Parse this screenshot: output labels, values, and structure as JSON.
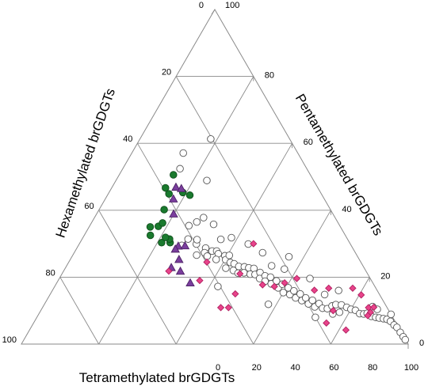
{
  "chart_data": {
    "type": "scatter",
    "subtype": "ternary",
    "axes": {
      "bottom": {
        "label": "Tetramethylated brGDGTs",
        "ticks": [
          "0",
          "20",
          "40",
          "60",
          "80",
          "100"
        ]
      },
      "left": {
        "label": "Hexamethylated brGDGTs",
        "ticks": [
          "0",
          "20",
          "40",
          "60",
          "80",
          "100"
        ]
      },
      "right": {
        "label": "Pentamethylated brGDGTs",
        "ticks": [
          "100",
          "80",
          "60",
          "40",
          "20",
          "0"
        ]
      }
    },
    "range": [
      0,
      100
    ],
    "grid": true,
    "grid_step": 20,
    "series": [
      {
        "marker": "circle",
        "color": "#ffffff",
        "stroke": "#555555",
        "points": [
          {
            "tetra": 27.4,
            "hexa": 41.2
          },
          {
            "tetra": 26.7,
            "hexa": 43.8
          },
          {
            "tetra": 30.3,
            "hexa": 39.8
          },
          {
            "tetra": 29.8,
            "hexa": 39.0
          },
          {
            "tetra": 32.0,
            "hexa": 41.4
          },
          {
            "tetra": 33.3,
            "hexa": 38.0
          },
          {
            "tetra": 33.7,
            "hexa": 39.0
          },
          {
            "tetra": 35.4,
            "hexa": 36.8
          },
          {
            "tetra": 34.9,
            "hexa": 38.8
          },
          {
            "tetra": 36.6,
            "hexa": 35.6
          },
          {
            "tetra": 37.4,
            "hexa": 35.6
          },
          {
            "tetra": 37.7,
            "hexa": 37.0
          },
          {
            "tetra": 39.4,
            "hexa": 34.2
          },
          {
            "tetra": 40.2,
            "hexa": 34.6
          },
          {
            "tetra": 40.5,
            "hexa": 33.0
          },
          {
            "tetra": 41.8,
            "hexa": 33.8
          },
          {
            "tetra": 41.5,
            "hexa": 35.8
          },
          {
            "tetra": 43.0,
            "hexa": 33.0
          },
          {
            "tetra": 43.8,
            "hexa": 34.2
          },
          {
            "tetra": 44.6,
            "hexa": 32.2
          },
          {
            "tetra": 45.4,
            "hexa": 33.4
          },
          {
            "tetra": 46.1,
            "hexa": 30.8
          },
          {
            "tetra": 46.9,
            "hexa": 31.8
          },
          {
            "tetra": 47.4,
            "hexa": 29.8
          },
          {
            "tetra": 48.7,
            "hexa": 30.4
          },
          {
            "tetra": 48.8,
            "hexa": 28.6
          },
          {
            "tetra": 50.0,
            "hexa": 29.2
          },
          {
            "tetra": 51.0,
            "hexa": 27.6
          },
          {
            "tetra": 51.8,
            "hexa": 28.6
          },
          {
            "tetra": 52.8,
            "hexa": 26.8
          },
          {
            "tetra": 53.6,
            "hexa": 27.6
          },
          {
            "tetra": 54.4,
            "hexa": 25.6
          },
          {
            "tetra": 55.6,
            "hexa": 26.4
          },
          {
            "tetra": 56.5,
            "hexa": 24.6
          },
          {
            "tetra": 58.0,
            "hexa": 25.2
          },
          {
            "tetra": 58.5,
            "hexa": 23.6
          },
          {
            "tetra": 60.0,
            "hexa": 24.6
          },
          {
            "tetra": 60.6,
            "hexa": 22.6
          },
          {
            "tetra": 62.0,
            "hexa": 23.2
          },
          {
            "tetra": 62.5,
            "hexa": 21.6
          },
          {
            "tetra": 64.0,
            "hexa": 22.2
          },
          {
            "tetra": 64.6,
            "hexa": 20.4
          },
          {
            "tetra": 66.0,
            "hexa": 21.0
          },
          {
            "tetra": 66.6,
            "hexa": 19.6
          },
          {
            "tetra": 68.2,
            "hexa": 19.8
          },
          {
            "tetra": 68.7,
            "hexa": 18.2
          },
          {
            "tetra": 70.3,
            "hexa": 18.6
          },
          {
            "tetra": 70.9,
            "hexa": 17.0
          },
          {
            "tetra": 72.5,
            "hexa": 16.8
          },
          {
            "tetra": 73.8,
            "hexa": 15.6
          },
          {
            "tetra": 74.6,
            "hexa": 14.0
          },
          {
            "tetra": 75.4,
            "hexa": 12.8
          },
          {
            "tetra": 76.0,
            "hexa": 15.0
          },
          {
            "tetra": 76.9,
            "hexa": 11.4
          },
          {
            "tetra": 77.5,
            "hexa": 13.0
          },
          {
            "tetra": 78.6,
            "hexa": 10.4
          },
          {
            "tetra": 80.0,
            "hexa": 9.6
          },
          {
            "tetra": 81.3,
            "hexa": 8.6
          },
          {
            "tetra": 82.9,
            "hexa": 8.0
          },
          {
            "tetra": 84.0,
            "hexa": 7.0
          },
          {
            "tetra": 84.8,
            "hexa": 6.0
          },
          {
            "tetra": 86.3,
            "hexa": 5.4
          },
          {
            "tetra": 87.6,
            "hexa": 4.4
          },
          {
            "tetra": 88.6,
            "hexa": 3.6
          },
          {
            "tetra": 89.8,
            "hexa": 2.6
          },
          {
            "tetra": 90.8,
            "hexa": 1.8
          },
          {
            "tetra": 92.0,
            "hexa": 1.2
          },
          {
            "tetra": 93.5,
            "hexa": 0.8
          },
          {
            "tetra": 94.6,
            "hexa": 0.4
          },
          {
            "tetra": 96.2,
            "hexa": 0.3
          },
          {
            "tetra": 97.6,
            "hexa": 0.2
          },
          {
            "tetra": 98.6,
            "hexa": 0.1
          },
          {
            "tetra": 91.1,
            "hexa": 0.0
          },
          {
            "tetra": 86.8,
            "hexa": 2.8
          },
          {
            "tetra": 85.2,
            "hexa": 3.6
          },
          {
            "tetra": 74.0,
            "hexa": 10.0
          },
          {
            "tetra": 71.0,
            "hexa": 14.2
          },
          {
            "tetra": 72.0,
            "hexa": 20.0
          },
          {
            "tetra": 64.8,
            "hexa": 15.6
          },
          {
            "tetra": 56.8,
            "hexa": 20.8
          },
          {
            "tetra": 57.9,
            "hexa": 30.2
          },
          {
            "tetra": 43.7,
            "hexa": 26.4
          },
          {
            "tetra": 38.4,
            "hexa": 29.8
          },
          {
            "tetra": 35.9,
            "hexa": 32.8
          },
          {
            "tetra": 31.8,
            "hexa": 32.4
          },
          {
            "tetra": 27.1,
            "hexa": 36.4
          },
          {
            "tetra": 28.2,
            "hexa": 34.0
          },
          {
            "tetra": 23.5,
            "hexa": 27.6
          },
          {
            "tetra": 18.3,
            "hexa": 20.4
          },
          {
            "tetra": 14.8,
            "hexa": 32.8
          },
          {
            "tetra": 13.3,
            "hexa": 29.6
          },
          {
            "tetra": 25.6,
            "hexa": 39.0
          },
          {
            "tetra": 42.2,
            "hexa": 40.6
          },
          {
            "tetra": 48.7,
            "hexa": 24.0
          },
          {
            "tetra": 53.0,
            "hexa": 23.6
          },
          {
            "tetra": 56.1,
            "hexa": 17.8
          }
        ]
      },
      {
        "marker": "circle",
        "color": "#1a7a2e",
        "stroke": "#0e4d1a",
        "points": [
          {
            "tetra": 23.3,
            "hexa": 46.4
          },
          {
            "tetra": 22.6,
            "hexa": 46.0
          },
          {
            "tetra": 21.1,
            "hexa": 48.6
          },
          {
            "tetra": 21.3,
            "hexa": 46.8
          },
          {
            "tetra": 17.8,
            "hexa": 47.0
          },
          {
            "tetra": 18.4,
            "hexa": 45.4
          },
          {
            "tetra": 16.8,
            "hexa": 43.0
          },
          {
            "tetra": 15.7,
            "hexa": 39.4
          },
          {
            "tetra": 14.0,
            "hexa": 35.4
          },
          {
            "tetra": 13.9,
            "hexa": 39.4
          },
          {
            "tetra": 21.3,
            "hexa": 34.2
          },
          {
            "tetra": 19.1,
            "hexa": 35.6
          },
          {
            "tetra": 15.8,
            "hexa": 49.2
          },
          {
            "tetra": 17.1,
            "hexa": 50.4
          }
        ]
      },
      {
        "marker": "triangle",
        "color": "#7a3e9d",
        "stroke": "#4d2266",
        "points": [
          {
            "tetra": 27.3,
            "hexa": 49.8
          },
          {
            "tetra": 30.2,
            "hexa": 48.0
          },
          {
            "tetra": 34.5,
            "hexa": 47.2
          },
          {
            "tetra": 28.1,
            "hexa": 46.6
          },
          {
            "tetra": 25.9,
            "hexa": 44.8
          },
          {
            "tetra": 25.6,
            "hexa": 46.0
          },
          {
            "tetra": 27.6,
            "hexa": 43.0
          },
          {
            "tetra": 19.9,
            "hexa": 41.2
          },
          {
            "tetra": 17.6,
            "hexa": 39.0
          },
          {
            "tetra": 16.5,
            "hexa": 36.6
          },
          {
            "tetra": 18.1,
            "hexa": 35.4
          }
        ]
      },
      {
        "marker": "diamond",
        "color": "#e8438a",
        "stroke": "#b02060",
        "points": [
          {
            "tetra": 27.2,
            "hexa": 51.0
          },
          {
            "tetra": 36.6,
            "hexa": 44.4
          },
          {
            "tetra": 35.7,
            "hexa": 39.8
          },
          {
            "tetra": 46.1,
            "hexa": 43.0
          },
          {
            "tetra": 48.1,
            "hexa": 41.0
          },
          {
            "tetra": 47.8,
            "hexa": 37.2
          },
          {
            "tetra": 53.5,
            "hexa": 28.8
          },
          {
            "tetra": 46.0,
            "hexa": 33.0
          },
          {
            "tetra": 45.0,
            "hexa": 25.0
          },
          {
            "tetra": 56.8,
            "hexa": 26.0
          },
          {
            "tetra": 58.9,
            "hexa": 22.8
          },
          {
            "tetra": 61.4,
            "hexa": 19.0
          },
          {
            "tetra": 67.7,
            "hexa": 16.2
          },
          {
            "tetra": 71.1,
            "hexa": 12.2
          },
          {
            "tetra": 75.6,
            "hexa": 14.4
          },
          {
            "tetra": 77.3,
            "hexa": 6.0
          },
          {
            "tetra": 80.5,
            "hexa": 4.8
          },
          {
            "tetra": 85.5,
            "hexa": 5.0
          },
          {
            "tetra": 84.3,
            "hexa": 4.8
          },
          {
            "tetra": 85.6,
            "hexa": 3.4
          },
          {
            "tetra": 75.7,
            "hexa": 18.0
          },
          {
            "tetra": 81.8,
            "hexa": 14.0
          },
          {
            "tetra": 85.3,
            "hexa": 6.2
          }
        ]
      }
    ]
  }
}
